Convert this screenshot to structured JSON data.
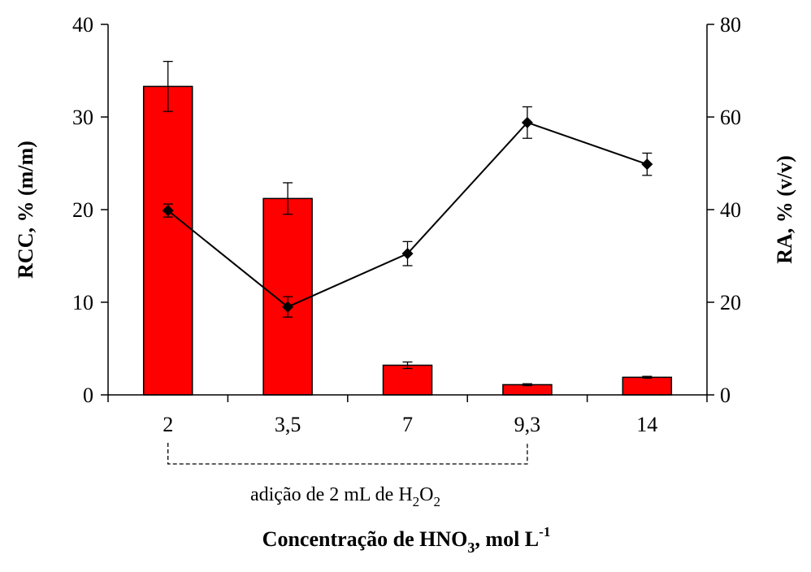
{
  "chart_data": {
    "type": "bar",
    "categories": [
      "2",
      "3,5",
      "7",
      "9,3",
      "14"
    ],
    "ylabel": "RCC, % (m/m)",
    "y2label": "RA, % (v/v)",
    "xlabel": {
      "main": "Concentração de HNO",
      "sub": "3",
      "tail": ", mol L",
      "sup": "-1"
    },
    "ylim": [
      0,
      40
    ],
    "y2lim": [
      0,
      80
    ],
    "yticks": [
      "0",
      "10",
      "20",
      "30",
      "40"
    ],
    "y2ticks": [
      "0",
      "20",
      "40",
      "60",
      "80"
    ],
    "grid": false,
    "bar_color": "#ff0000",
    "line_color": "#000000",
    "series": [
      {
        "type": "bar",
        "axis": "left",
        "values": [
          33.3,
          21.2,
          3.2,
          1.1,
          1.9
        ],
        "errors": [
          2.7,
          1.7,
          0.35,
          0.1,
          0.1
        ]
      },
      {
        "type": "line",
        "axis": "right",
        "marker": "diamond",
        "values": [
          39.8,
          19.0,
          30.5,
          58.8,
          49.8
        ],
        "errors": [
          1.4,
          2.2,
          2.6,
          3.4,
          2.4
        ]
      }
    ],
    "annotation": {
      "prefix": "adição de 2  mL de H",
      "sub1": "2",
      "mid": "O",
      "sub2": "2",
      "span": [
        "2",
        "9,3"
      ]
    }
  }
}
